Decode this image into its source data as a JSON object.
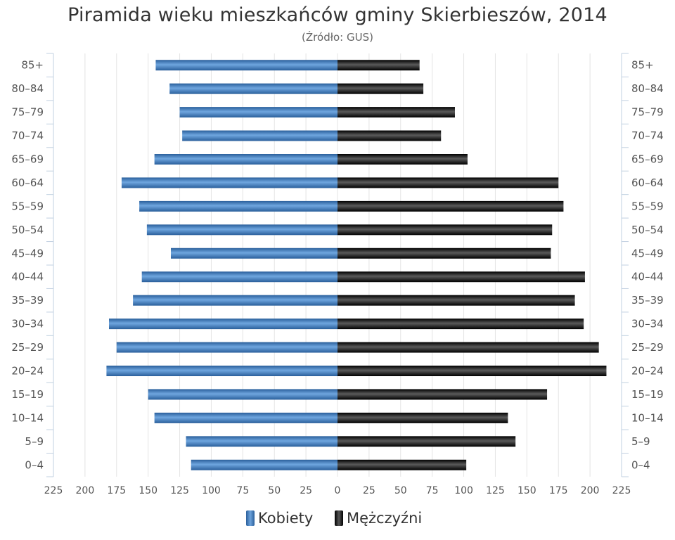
{
  "chart_data": {
    "type": "bar",
    "orientation": "horizontal-population-pyramid",
    "title": "Piramida wieku mieszkańców gminy Skierbieszów, 2014",
    "subtitle": "(Źródło: GUS)",
    "categories": [
      "85+",
      "80–84",
      "75–79",
      "70–74",
      "65–69",
      "60–64",
      "55–59",
      "50–54",
      "45–49",
      "40–44",
      "35–39",
      "30–34",
      "25–29",
      "20–24",
      "15–19",
      "10–14",
      "5–9",
      "0–4"
    ],
    "series": [
      {
        "name": "Kobiety",
        "color": "#3b78bd",
        "values": [
          144,
          133,
          125,
          123,
          145,
          171,
          157,
          151,
          132,
          155,
          162,
          181,
          175,
          183,
          150,
          145,
          120,
          116
        ]
      },
      {
        "name": "Mężczyźni",
        "color": "#111111",
        "values": [
          65,
          68,
          93,
          82,
          103,
          175,
          179,
          170,
          169,
          196,
          188,
          195,
          207,
          213,
          166,
          135,
          141,
          102
        ]
      }
    ],
    "xlim": [
      -225,
      225
    ],
    "x_ticks": [
      -225,
      -200,
      -175,
      -150,
      -125,
      -100,
      -75,
      -50,
      -25,
      0,
      25,
      50,
      75,
      100,
      125,
      150,
      175,
      200,
      225
    ],
    "x_tick_labels": [
      "225",
      "200",
      "175",
      "150",
      "125",
      "100",
      "75",
      "50",
      "25",
      "0",
      "25",
      "50",
      "75",
      "100",
      "125",
      "150",
      "175",
      "200",
      "225"
    ],
    "grid": true,
    "legend": "bottom-center"
  }
}
